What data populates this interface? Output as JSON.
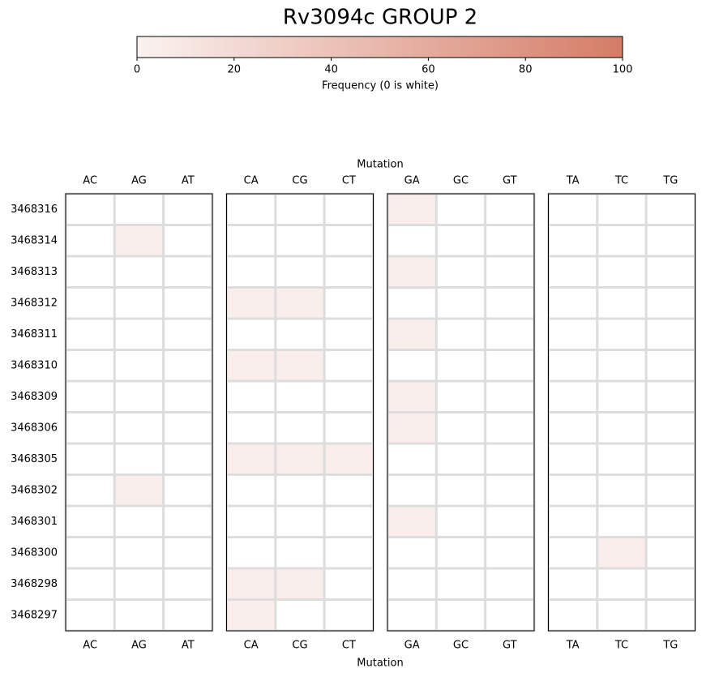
{
  "chart_data": {
    "type": "heatmap",
    "title": "Rv3094c GROUP 2",
    "colorbar": {
      "label": "Frequency (0 is white)",
      "lim": [
        0,
        100
      ],
      "ticks": [
        0,
        20,
        40,
        60,
        80,
        100
      ],
      "colors": [
        "#fbf2f0",
        "#d57c66"
      ]
    },
    "zero_color": "#ffffff",
    "x_label": "Mutation",
    "x_groups": [
      [
        "AC",
        "AG",
        "AT"
      ],
      [
        "CA",
        "CG",
        "CT"
      ],
      [
        "GA",
        "GC",
        "GT"
      ],
      [
        "TA",
        "TC",
        "TG"
      ]
    ],
    "y_categories": [
      "3468316",
      "3468314",
      "3468313",
      "3468312",
      "3468311",
      "3468310",
      "3468309",
      "3468306",
      "3468305",
      "3468302",
      "3468301",
      "3468300",
      "3468298",
      "3468297"
    ],
    "values": [
      [
        0,
        0,
        0,
        0,
        0,
        0,
        3,
        0,
        0,
        0,
        0,
        0
      ],
      [
        0,
        3,
        0,
        0,
        0,
        0,
        0,
        0,
        0,
        0,
        0,
        0
      ],
      [
        0,
        0,
        0,
        0,
        0,
        0,
        3,
        0,
        0,
        0,
        0,
        0
      ],
      [
        0,
        0,
        0,
        3,
        3,
        0,
        0,
        0,
        0,
        0,
        0,
        0
      ],
      [
        0,
        0,
        0,
        0,
        0,
        0,
        3,
        0,
        0,
        0,
        0,
        0
      ],
      [
        0,
        0,
        0,
        3,
        3,
        0,
        0,
        0,
        0,
        0,
        0,
        0
      ],
      [
        0,
        0,
        0,
        0,
        0,
        0,
        3,
        0,
        0,
        0,
        0,
        0
      ],
      [
        0,
        0,
        0,
        0,
        0,
        0,
        3,
        0,
        0,
        0,
        0,
        0
      ],
      [
        0,
        0,
        0,
        3,
        3,
        3,
        0,
        0,
        0,
        0,
        0,
        0
      ],
      [
        0,
        3,
        0,
        0,
        0,
        0,
        0,
        0,
        0,
        0,
        0,
        0
      ],
      [
        0,
        0,
        0,
        0,
        0,
        0,
        3,
        0,
        0,
        0,
        0,
        0
      ],
      [
        0,
        0,
        0,
        0,
        0,
        0,
        0,
        0,
        0,
        0,
        3,
        0
      ],
      [
        0,
        0,
        0,
        3,
        3,
        0,
        0,
        0,
        0,
        0,
        0,
        0
      ],
      [
        0,
        0,
        0,
        3,
        0,
        0,
        0,
        0,
        0,
        0,
        0,
        0
      ]
    ]
  }
}
